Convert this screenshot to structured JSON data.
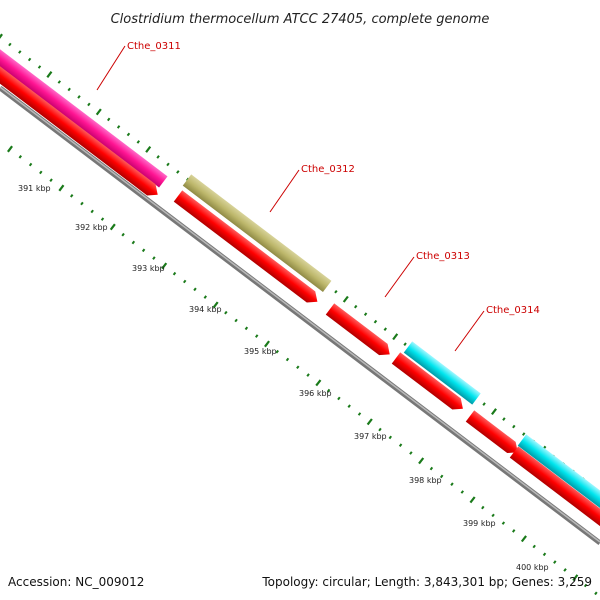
{
  "title": "Clostridium thermocellum ATCC 27405, complete genome",
  "footer": {
    "accession": "Accession: NC_009012",
    "summary": "Topology: circular; Length: 3,843,301 bp; Genes: 3,259"
  },
  "colors": {
    "tick": "#1a7a1a",
    "backbone": "#888888",
    "cds": "#ff0000",
    "label": "#cc0000"
  },
  "genes": [
    {
      "name": "Cthe_0311",
      "color": "#ff1493"
    },
    {
      "name": "Cthe_0312",
      "color": "#bdb76b"
    },
    {
      "name": "Cthe_0313",
      "color": "#ff0000"
    },
    {
      "name": "Cthe_0314",
      "color": "#00e5ee"
    }
  ],
  "scale_labels": [
    "391 kbp",
    "392 kbp",
    "393 kbp",
    "394 kbp",
    "395 kbp",
    "396 kbp",
    "397 kbp",
    "398 kbp",
    "399 kbp",
    "400 kbp"
  ]
}
